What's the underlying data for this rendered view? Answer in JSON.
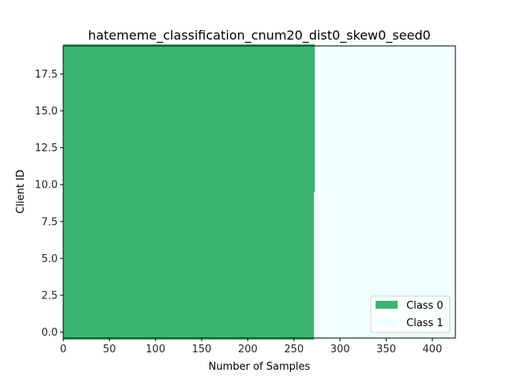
{
  "chart_data": {
    "type": "bar",
    "orientation": "horizontal",
    "stacked": true,
    "title": "hatememe_classification_cnum20_dist0_skew0_seed0",
    "xlabel": "Number of Samples",
    "ylabel": "Client ID",
    "xlim": [
      0,
      425
    ],
    "ylim": [
      -0.4,
      19.4
    ],
    "xticks": [
      0,
      50,
      100,
      150,
      200,
      250,
      300,
      350,
      400
    ],
    "xtick_labels": [
      "0",
      "50",
      "100",
      "150",
      "200",
      "250",
      "300",
      "350",
      "400"
    ],
    "yticks": [
      0.0,
      2.5,
      5.0,
      7.5,
      10.0,
      12.5,
      15.0,
      17.5
    ],
    "ytick_labels": [
      "0.0",
      "2.5",
      "5.0",
      "7.5",
      "10.0",
      "12.5",
      "15.0",
      "17.5"
    ],
    "categories": [
      0,
      1,
      2,
      3,
      4,
      5,
      6,
      7,
      8,
      9,
      10,
      11,
      12,
      13,
      14,
      15,
      16,
      17,
      18,
      19
    ],
    "series": [
      {
        "name": "Class 0",
        "color": "#3cb371",
        "values": [
          272,
          272,
          272,
          272,
          272,
          272,
          272,
          272,
          272,
          272,
          273,
          273,
          273,
          273,
          273,
          273,
          273,
          273,
          273,
          273
        ]
      },
      {
        "name": "Class 1",
        "color": "#f0ffff",
        "values": [
          153,
          153,
          153,
          153,
          153,
          153,
          153,
          153,
          153,
          153,
          152,
          152,
          152,
          152,
          152,
          152,
          152,
          152,
          152,
          152
        ]
      }
    ],
    "legend_position": "lower-right",
    "grid": false
  }
}
